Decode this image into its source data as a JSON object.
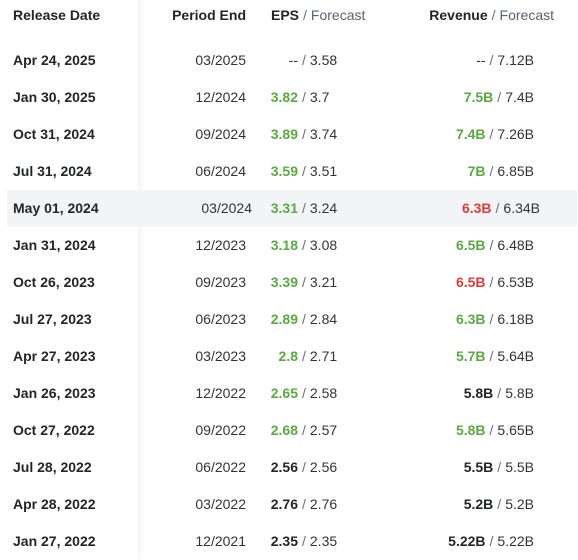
{
  "header": {
    "release_date": "Release Date",
    "period_end": "Period End",
    "eps": "EPS",
    "separator": "/",
    "forecast": "Forecast",
    "revenue": "Revenue"
  },
  "colors": {
    "beat": "#5aa942",
    "miss": "#e03b3b",
    "neutral": "#232526",
    "highlight_row": "#f3f4f5"
  },
  "rows": [
    {
      "release_date": "Apr 24, 2025",
      "period_end": "03/2025",
      "eps_actual": "--",
      "eps_forecast": "3.58",
      "eps_status": "none",
      "revenue_actual": "--",
      "revenue_forecast": "7.12B",
      "revenue_status": "none",
      "highlighted": false
    },
    {
      "release_date": "Jan 30, 2025",
      "period_end": "12/2024",
      "eps_actual": "3.82",
      "eps_forecast": "3.7",
      "eps_status": "beat",
      "revenue_actual": "7.5B",
      "revenue_forecast": "7.4B",
      "revenue_status": "beat",
      "highlighted": false
    },
    {
      "release_date": "Oct 31, 2024",
      "period_end": "09/2024",
      "eps_actual": "3.89",
      "eps_forecast": "3.74",
      "eps_status": "beat",
      "revenue_actual": "7.4B",
      "revenue_forecast": "7.26B",
      "revenue_status": "beat",
      "highlighted": false
    },
    {
      "release_date": "Jul 31, 2024",
      "period_end": "06/2024",
      "eps_actual": "3.59",
      "eps_forecast": "3.51",
      "eps_status": "beat",
      "revenue_actual": "7B",
      "revenue_forecast": "6.85B",
      "revenue_status": "beat",
      "highlighted": false
    },
    {
      "release_date": "May 01, 2024",
      "period_end": "03/2024",
      "eps_actual": "3.31",
      "eps_forecast": "3.24",
      "eps_status": "beat",
      "revenue_actual": "6.3B",
      "revenue_forecast": "6.34B",
      "revenue_status": "miss",
      "highlighted": true
    },
    {
      "release_date": "Jan 31, 2024",
      "period_end": "12/2023",
      "eps_actual": "3.18",
      "eps_forecast": "3.08",
      "eps_status": "beat",
      "revenue_actual": "6.5B",
      "revenue_forecast": "6.48B",
      "revenue_status": "beat",
      "highlighted": false
    },
    {
      "release_date": "Oct 26, 2023",
      "period_end": "09/2023",
      "eps_actual": "3.39",
      "eps_forecast": "3.21",
      "eps_status": "beat",
      "revenue_actual": "6.5B",
      "revenue_forecast": "6.53B",
      "revenue_status": "miss",
      "highlighted": false
    },
    {
      "release_date": "Jul 27, 2023",
      "period_end": "06/2023",
      "eps_actual": "2.89",
      "eps_forecast": "2.84",
      "eps_status": "beat",
      "revenue_actual": "6.3B",
      "revenue_forecast": "6.18B",
      "revenue_status": "beat",
      "highlighted": false
    },
    {
      "release_date": "Apr 27, 2023",
      "period_end": "03/2023",
      "eps_actual": "2.8",
      "eps_forecast": "2.71",
      "eps_status": "beat",
      "revenue_actual": "5.7B",
      "revenue_forecast": "5.64B",
      "revenue_status": "beat",
      "highlighted": false
    },
    {
      "release_date": "Jan 26, 2023",
      "period_end": "12/2022",
      "eps_actual": "2.65",
      "eps_forecast": "2.58",
      "eps_status": "beat",
      "revenue_actual": "5.8B",
      "revenue_forecast": "5.8B",
      "revenue_status": "neutral",
      "highlighted": false
    },
    {
      "release_date": "Oct 27, 2022",
      "period_end": "09/2022",
      "eps_actual": "2.68",
      "eps_forecast": "2.57",
      "eps_status": "beat",
      "revenue_actual": "5.8B",
      "revenue_forecast": "5.65B",
      "revenue_status": "beat",
      "highlighted": false
    },
    {
      "release_date": "Jul 28, 2022",
      "period_end": "06/2022",
      "eps_actual": "2.56",
      "eps_forecast": "2.56",
      "eps_status": "neutral",
      "revenue_actual": "5.5B",
      "revenue_forecast": "5.5B",
      "revenue_status": "neutral",
      "highlighted": false
    },
    {
      "release_date": "Apr 28, 2022",
      "period_end": "03/2022",
      "eps_actual": "2.76",
      "eps_forecast": "2.76",
      "eps_status": "neutral",
      "revenue_actual": "5.2B",
      "revenue_forecast": "5.2B",
      "revenue_status": "neutral",
      "highlighted": false
    },
    {
      "release_date": "Jan 27, 2022",
      "period_end": "12/2021",
      "eps_actual": "2.35",
      "eps_forecast": "2.35",
      "eps_status": "neutral",
      "revenue_actual": "5.22B",
      "revenue_forecast": "5.22B",
      "revenue_status": "neutral",
      "highlighted": false
    }
  ]
}
